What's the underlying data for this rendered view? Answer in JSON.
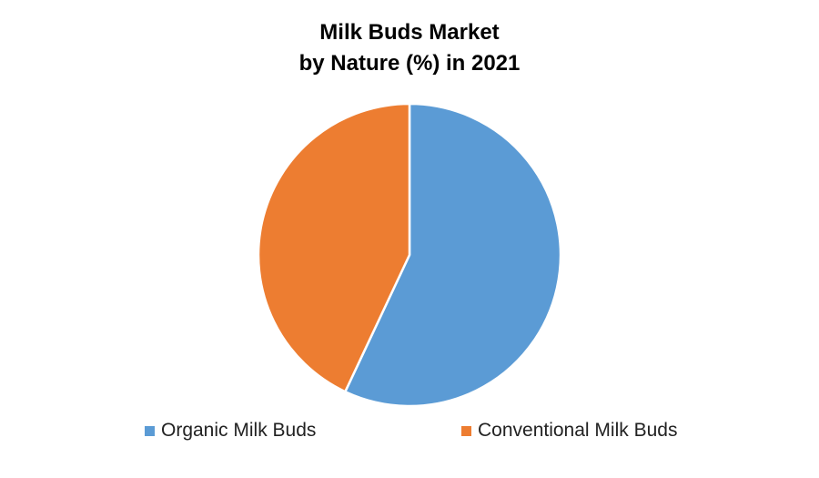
{
  "chart_data": {
    "type": "pie",
    "title_line1": "Milk Buds Market",
    "title_line2": "by Nature (%) in 2021",
    "categories": [
      "Organic Milk Buds",
      "Conventional Milk Buds"
    ],
    "values": [
      57,
      43
    ],
    "colors": [
      "#5B9BD5",
      "#ED7D31"
    ],
    "legend_position": "bottom"
  }
}
